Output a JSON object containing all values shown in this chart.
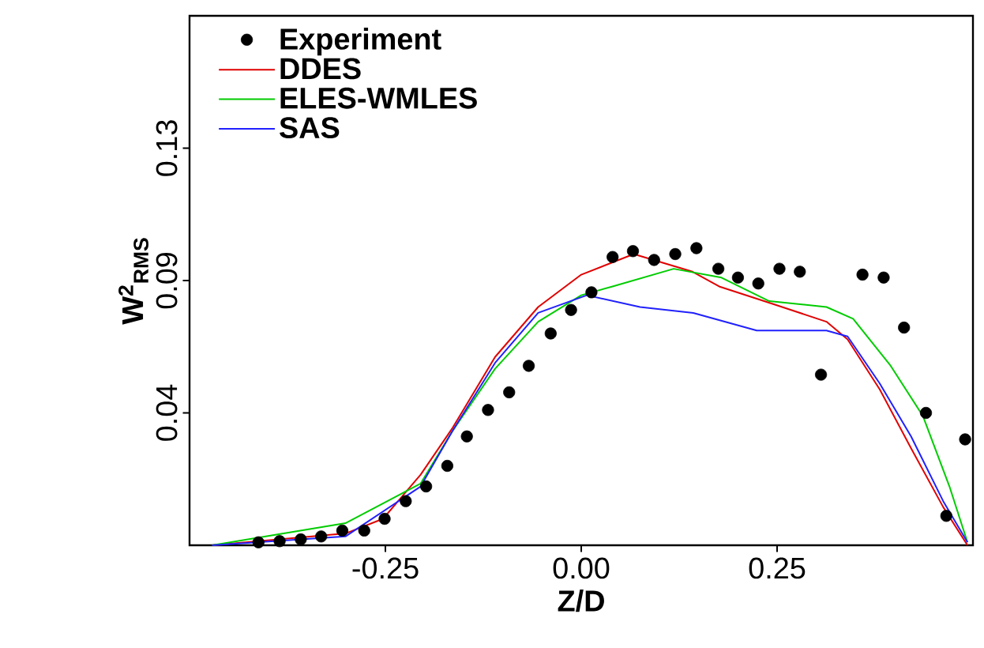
{
  "chart_data": {
    "type": "line",
    "xlabel": "Z/D",
    "ylabel": "W$^{2}$$_{RMS}$",
    "xlim": [
      -0.5,
      0.5
    ],
    "ylim": [
      0,
      0.18
    ],
    "xticks": [
      -0.25,
      {
        "value": 0,
        "label": "0.00"
      },
      0.25
    ],
    "yticks": [
      {
        "value": 0.045,
        "label": "0.04"
      },
      0.09,
      {
        "value": 0.135,
        "label": "0.13"
      }
    ],
    "legend": "top left",
    "grid": false,
    "series": [
      {
        "name": "Experiment",
        "type": "scatter",
        "color": "#000000",
        "x": [
          -0.412,
          -0.385,
          -0.358,
          -0.332,
          -0.305,
          -0.277,
          -0.251,
          -0.224,
          -0.198,
          -0.171,
          -0.146,
          -0.119,
          -0.092,
          -0.067,
          -0.039,
          -0.013,
          0.013,
          0.04,
          0.066,
          0.093,
          0.12,
          0.147,
          0.175,
          0.2,
          0.226,
          0.253,
          0.279,
          0.306,
          0.359,
          0.386,
          0.412,
          0.44,
          0.466,
          0.49
        ],
        "values": [
          0.001,
          0.0014,
          0.002,
          0.003,
          0.005,
          0.005,
          0.009,
          0.015,
          0.02,
          0.027,
          0.037,
          0.046,
          0.052,
          0.061,
          0.072,
          0.08,
          0.086,
          0.098,
          0.1,
          0.097,
          0.099,
          0.101,
          0.094,
          0.091,
          0.089,
          0.094,
          0.093,
          0.058,
          0.092,
          0.091,
          0.074,
          0.045,
          0.01,
          0.036
        ]
      },
      {
        "name": "DDES",
        "color": "#e00000",
        "x": [
          -0.471,
          -0.301,
          -0.253,
          -0.205,
          -0.164,
          -0.11,
          -0.055,
          0.0,
          0.067,
          0.142,
          0.176,
          0.245,
          0.313,
          0.34,
          0.381,
          0.421,
          0.462,
          0.493
        ],
        "values": [
          0,
          0.004,
          0.009,
          0.024,
          0.04,
          0.064,
          0.081,
          0.092,
          0.099,
          0.093,
          0.088,
          0.082,
          0.076,
          0.07,
          0.053,
          0.033,
          0.013,
          0
        ]
      },
      {
        "name": "ELES-WMLES",
        "color": "#00cc00",
        "x": [
          -0.471,
          -0.301,
          -0.205,
          -0.164,
          -0.11,
          -0.055,
          0.0,
          0.04,
          0.118,
          0.179,
          0.24,
          0.313,
          0.347,
          0.395,
          0.436,
          0.47,
          0.493
        ],
        "values": [
          0,
          0.0075,
          0.021,
          0.039,
          0.06,
          0.076,
          0.085,
          0.088,
          0.094,
          0.091,
          0.083,
          0.081,
          0.077,
          0.061,
          0.044,
          0.02,
          0.001
        ]
      },
      {
        "name": "SAS",
        "color": "#2020ff",
        "x": [
          -0.471,
          -0.301,
          -0.205,
          -0.164,
          -0.11,
          -0.055,
          0.007,
          0.075,
          0.143,
          0.224,
          0.313,
          0.34,
          0.381,
          0.421,
          0.462,
          0.493
        ],
        "values": [
          0,
          0.003,
          0.02,
          0.039,
          0.062,
          0.079,
          0.085,
          0.081,
          0.079,
          0.073,
          0.073,
          0.071,
          0.055,
          0.037,
          0.015,
          0.001
        ]
      }
    ]
  }
}
